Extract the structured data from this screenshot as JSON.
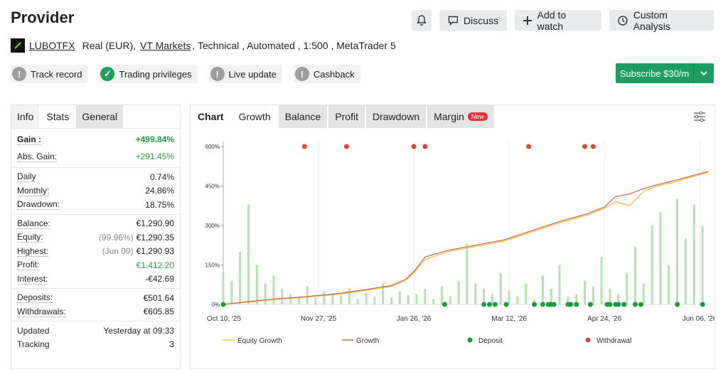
{
  "header": {
    "title": "Provider",
    "buttons": [
      "Discuss",
      "Add to watch",
      "Custom Analysis"
    ]
  },
  "account": {
    "name": "LUBOTFX",
    "type": "Real (EUR),",
    "broker": "VT Markets",
    "details": ", Technical , Automated , 1:500 , MetaTrader 5"
  },
  "badges": [
    {
      "label": "Track record",
      "color": "#9e9e9e"
    },
    {
      "label": "Trading privileges",
      "color": "#1e9e5e"
    },
    {
      "label": "Live update",
      "color": "#9e9e9e"
    },
    {
      "label": "Cashback",
      "color": "#9e9e9e"
    }
  ],
  "subscribe": "Subscribe $30/m",
  "stats_tabs": [
    "Info",
    "Stats",
    "General"
  ],
  "stats": [
    [
      {
        "label": "Gain :",
        "value": "+499.84%",
        "color": "#1e9e3e",
        "bold": true
      },
      {
        "label": "Abs. Gain:",
        "value": "+291.45%",
        "color": "#1e9e3e"
      }
    ],
    [
      {
        "label": "Daily",
        "value": "0.74%"
      },
      {
        "label": "Monthly:",
        "value": "24.86%"
      },
      {
        "label": "Drawdown:",
        "value": "18.75%"
      }
    ],
    [
      {
        "label": "Balance:",
        "value": "€1,290.90"
      },
      {
        "label": "Equity:",
        "note": "(99.96%)",
        "value": "€1,290.35"
      },
      {
        "label": "Highest:",
        "note": "(Jun 09)",
        "value": "€1,290.93"
      },
      {
        "label": "Profit:",
        "value": "€1,412.20",
        "color": "#1e9e3e"
      },
      {
        "label": "Interest:",
        "value": "-€42.69"
      }
    ],
    [
      {
        "label": "Deposits:",
        "value": "€501.64"
      },
      {
        "label": "Withdrawals:",
        "value": "€605.85"
      }
    ],
    [
      {
        "label": "Updated",
        "value": "Yesterday at 09:33"
      },
      {
        "label": "Tracking",
        "value": "3"
      }
    ]
  ],
  "chart_tabs": {
    "label": "Chart",
    "tabs": [
      "Growth",
      "Balance",
      "Profit",
      "Drawdown",
      "Margin"
    ],
    "badge": "New"
  },
  "chart_data": {
    "type": "line",
    "grid": "x",
    "xlim": [
      0,
      173
    ],
    "xticks": [
      {
        "value": 0,
        "label": "Oct 10, '25"
      },
      {
        "value": 34,
        "label": "Nov 27, '25"
      },
      {
        "value": 68,
        "label": "Jan 26, '26"
      },
      {
        "value": 102,
        "label": "Mar 12, '26"
      },
      {
        "value": 136,
        "label": "Apr 24, '26"
      },
      {
        "value": 170,
        "label": "Jun 06, '26"
      }
    ],
    "ylim": [
      0,
      620
    ],
    "yticks": [
      {
        "value": 0,
        "label": "0%"
      },
      {
        "value": 150,
        "label": "150%"
      },
      {
        "value": 300,
        "label": "300%"
      },
      {
        "value": 450,
        "label": "450%"
      },
      {
        "value": 600,
        "label": "600%"
      }
    ],
    "series": [
      {
        "type": "bar",
        "color": "#b9e0b3",
        "x": [
          0,
          3,
          6,
          9,
          12,
          15,
          18,
          21,
          24,
          27,
          30,
          33,
          36,
          39,
          42,
          45,
          48,
          51,
          54,
          57,
          60,
          63,
          66,
          69,
          72,
          75,
          78,
          81,
          84,
          87,
          90,
          93,
          96,
          99,
          102,
          105,
          108,
          111,
          114,
          117,
          120,
          123,
          126,
          129,
          132,
          135,
          138,
          141,
          144,
          147,
          150,
          153,
          156,
          159,
          162,
          165,
          168,
          171
        ],
        "values": [
          120,
          90,
          200,
          380,
          150,
          80,
          110,
          60,
          40,
          30,
          70,
          25,
          50,
          40,
          35,
          60,
          20,
          45,
          30,
          80,
          25,
          50,
          35,
          40,
          60,
          20,
          70,
          30,
          90,
          230,
          80,
          60,
          40,
          120,
          50,
          30,
          80,
          20,
          110,
          60,
          150,
          30,
          40,
          90,
          70,
          180,
          60,
          40,
          120,
          220,
          80,
          300,
          350,
          150,
          400,
          250,
          380,
          300
        ]
      },
      {
        "name": "Equity Growth",
        "type": "line",
        "color": "#e8c547",
        "x": [
          0,
          10,
          20,
          30,
          40,
          50,
          60,
          65,
          68,
          72,
          80,
          90,
          100,
          110,
          120,
          130,
          136,
          140,
          145,
          150,
          155,
          160,
          165,
          170,
          173
        ],
        "values": [
          0,
          10,
          20,
          28,
          38,
          52,
          68,
          90,
          120,
          170,
          200,
          220,
          240,
          275,
          310,
          340,
          365,
          390,
          375,
          430,
          450,
          462,
          478,
          492,
          503
        ]
      },
      {
        "name": "Growth",
        "type": "line",
        "color": "#d2694e",
        "x": [
          0,
          10,
          20,
          30,
          40,
          50,
          60,
          65,
          68,
          72,
          80,
          90,
          100,
          110,
          120,
          130,
          136,
          140,
          145,
          150,
          155,
          160,
          165,
          170,
          173
        ],
        "values": [
          0,
          12,
          22,
          30,
          40,
          55,
          72,
          95,
          125,
          180,
          205,
          225,
          245,
          280,
          315,
          345,
          370,
          410,
          420,
          440,
          455,
          468,
          482,
          497,
          505
        ]
      },
      {
        "name": "Deposit",
        "type": "scatter",
        "color": "#1a9c3e",
        "x": [
          0,
          79,
          93,
          95,
          97,
          101,
          111,
          114,
          116,
          117,
          118,
          123,
          124,
          126,
          131,
          137,
          138,
          140,
          141,
          143,
          147,
          149,
          162,
          171
        ],
        "values": [
          0,
          0,
          0,
          0,
          0,
          0,
          0,
          0,
          0,
          0,
          0,
          0,
          0,
          0,
          0,
          0,
          0,
          0,
          0,
          0,
          0,
          0,
          0,
          0
        ]
      },
      {
        "name": "Withdrawal",
        "type": "scatter",
        "color": "#d9463a",
        "x": [
          29,
          44,
          68,
          72,
          109,
          129,
          132
        ],
        "values": [
          600,
          600,
          600,
          600,
          600,
          600,
          600
        ]
      }
    ]
  }
}
